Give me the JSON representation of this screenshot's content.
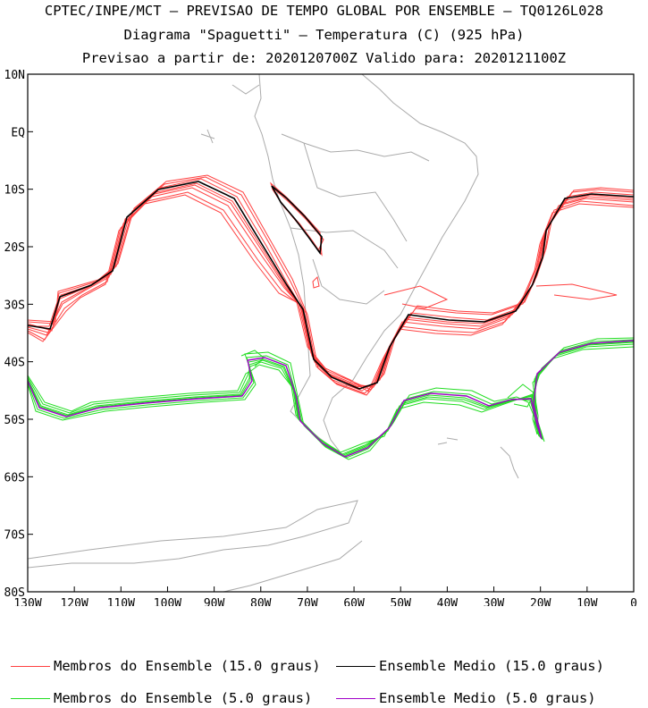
{
  "title": {
    "line1": "CPTEC/INPE/MCT – PREVISAO DE TEMPO GLOBAL POR ENSEMBLE – TQ0126L028",
    "line2": "Diagrama \"Spaguetti\" – Temperatura (C) (925 hPa)",
    "line3": "Previsao a partir de: 2020120700Z  Valido para: 2020121100Z"
  },
  "map": {
    "lon_range": [
      -130,
      0
    ],
    "lat_range": [
      -80,
      10
    ],
    "x_ticks": [
      "130W",
      "120W",
      "110W",
      "100W",
      "90W",
      "80W",
      "70W",
      "60W",
      "50W",
      "40W",
      "30W",
      "20W",
      "10W",
      "0"
    ],
    "y_ticks": [
      "10N",
      "EQ",
      "10S",
      "20S",
      "30S",
      "40S",
      "50S",
      "60S",
      "70S",
      "80S"
    ],
    "colors": {
      "land": "#aaaaaa",
      "frame": "#000000"
    }
  },
  "series": [
    {
      "name": "Membros do Ensemble (15.0 graus)",
      "color": "#ff3030",
      "kind": "members"
    },
    {
      "name": "Ensemble Medio (15.0 graus)",
      "color": "#000000",
      "kind": "mean"
    },
    {
      "name": "Membros do Ensemble (5.0 graus)",
      "color": "#00dd00",
      "kind": "members"
    },
    {
      "name": "Ensemble Medio (5.0 graus)",
      "color": "#a000c8",
      "kind": "mean"
    }
  ]
}
